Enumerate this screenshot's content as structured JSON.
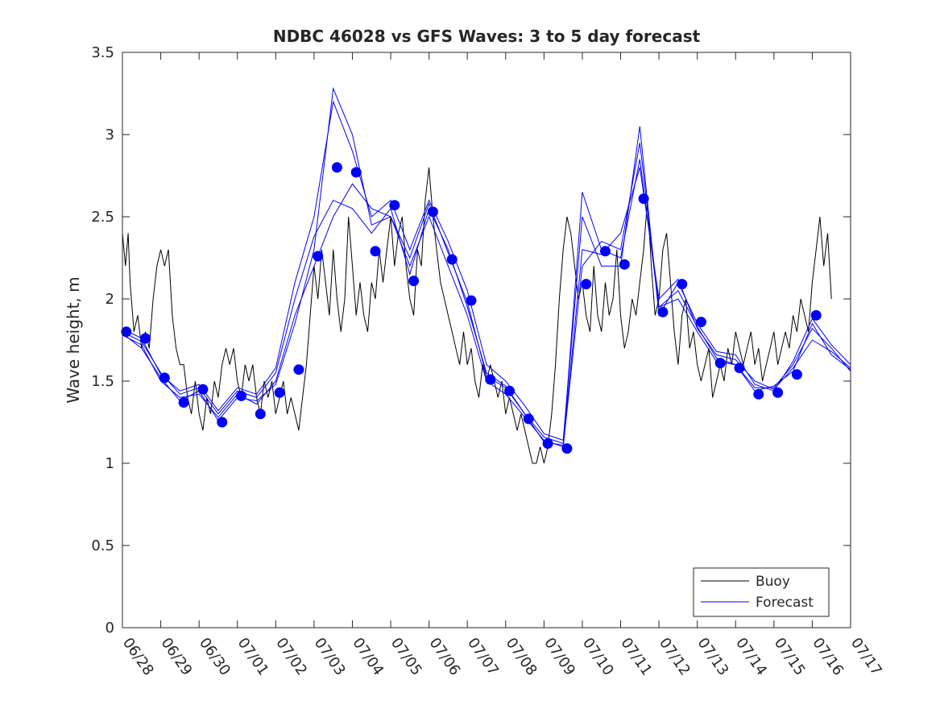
{
  "chart_data": {
    "type": "line",
    "title": "NDBC 46028 vs GFS Waves: 3 to 5 day forecast",
    "xlabel": "",
    "ylabel": "Wave height, m",
    "xlim": [
      "06/28",
      "07/17"
    ],
    "ylim": [
      0,
      3.5
    ],
    "x_ticks": [
      "06/28",
      "06/29",
      "06/30",
      "07/01",
      "07/02",
      "07/03",
      "07/04",
      "07/05",
      "07/06",
      "07/07",
      "07/08",
      "07/09",
      "07/10",
      "07/11",
      "07/12",
      "07/13",
      "07/14",
      "07/15",
      "07/16",
      "07/17"
    ],
    "y_ticks": [
      "0",
      "0.5",
      "1",
      "1.5",
      "2",
      "2.5",
      "3",
      "3.5"
    ],
    "grid": false,
    "legend": {
      "position": "bottom-right",
      "entries": [
        "Buoy",
        "Forecast"
      ]
    },
    "colors": {
      "buoy": "#000000",
      "forecast": "#0000ff",
      "axis": "#262626"
    },
    "buoy": {
      "x_days": [
        0.0,
        0.08,
        0.15,
        0.2,
        0.3,
        0.4,
        0.5,
        0.6,
        0.7,
        0.8,
        0.9,
        1.0,
        1.1,
        1.2,
        1.3,
        1.4,
        1.5,
        1.6,
        1.7,
        1.8,
        1.9,
        2.0,
        2.1,
        2.2,
        2.3,
        2.4,
        2.5,
        2.6,
        2.7,
        2.8,
        2.9,
        3.0,
        3.1,
        3.2,
        3.3,
        3.4,
        3.5,
        3.6,
        3.7,
        3.8,
        3.9,
        4.0,
        4.1,
        4.2,
        4.3,
        4.4,
        4.5,
        4.6,
        4.7,
        4.8,
        4.9,
        5.0,
        5.1,
        5.2,
        5.3,
        5.4,
        5.5,
        5.6,
        5.7,
        5.8,
        5.9,
        6.0,
        6.1,
        6.2,
        6.3,
        6.4,
        6.5,
        6.6,
        6.7,
        6.8,
        6.9,
        7.0,
        7.1,
        7.2,
        7.3,
        7.4,
        7.5,
        7.6,
        7.7,
        7.8,
        7.9,
        8.0,
        8.1,
        8.2,
        8.3,
        8.4,
        8.5,
        8.6,
        8.7,
        8.8,
        8.9,
        9.0,
        9.1,
        9.2,
        9.3,
        9.4,
        9.5,
        9.6,
        9.7,
        9.8,
        9.9,
        10.0,
        10.1,
        10.2,
        10.3,
        10.4,
        10.5,
        10.6,
        10.7,
        10.8,
        10.9,
        11.0,
        11.1,
        11.2,
        11.3,
        11.4,
        11.5,
        11.6,
        11.7,
        11.8,
        11.9,
        12.0,
        12.1,
        12.2,
        12.3,
        12.4,
        12.5,
        12.6,
        12.7,
        12.8,
        12.9,
        13.0,
        13.1,
        13.2,
        13.3,
        13.4,
        13.5,
        13.6,
        13.7,
        13.8,
        13.9,
        14.0,
        14.1,
        14.2,
        14.3,
        14.4,
        14.5,
        14.6,
        14.7,
        14.8,
        14.9,
        15.0,
        15.1,
        15.2,
        15.3,
        15.4,
        15.5,
        15.6,
        15.7,
        15.8,
        15.9,
        16.0,
        16.1,
        16.2,
        16.3,
        16.4,
        16.5,
        16.6,
        16.7,
        16.8,
        16.9,
        17.0,
        17.1,
        17.2,
        17.3,
        17.4,
        17.5,
        17.6,
        17.7,
        17.8,
        17.9,
        18.0,
        18.1,
        18.2,
        18.3,
        18.4,
        18.5
      ],
      "values": [
        2.4,
        2.2,
        2.4,
        2.1,
        1.8,
        1.9,
        1.7,
        1.8,
        1.7,
        2.0,
        2.2,
        2.3,
        2.2,
        2.3,
        1.9,
        1.7,
        1.6,
        1.6,
        1.4,
        1.3,
        1.5,
        1.3,
        1.2,
        1.4,
        1.3,
        1.5,
        1.4,
        1.6,
        1.7,
        1.6,
        1.7,
        1.5,
        1.4,
        1.6,
        1.5,
        1.6,
        1.4,
        1.3,
        1.5,
        1.4,
        1.5,
        1.3,
        1.4,
        1.5,
        1.3,
        1.4,
        1.3,
        1.2,
        1.4,
        1.6,
        1.9,
        2.2,
        2.0,
        2.3,
        2.1,
        1.9,
        2.3,
        2.0,
        1.8,
        2.0,
        2.5,
        2.2,
        1.9,
        2.1,
        1.9,
        1.8,
        2.1,
        2.0,
        2.3,
        2.1,
        2.3,
        2.5,
        2.2,
        2.4,
        2.5,
        2.2,
        2.0,
        1.9,
        2.3,
        2.2,
        2.6,
        2.8,
        2.5,
        2.3,
        2.1,
        2.0,
        1.9,
        1.8,
        1.7,
        1.6,
        1.8,
        1.6,
        1.7,
        1.5,
        1.4,
        1.6,
        1.5,
        1.6,
        1.5,
        1.4,
        1.5,
        1.3,
        1.4,
        1.3,
        1.2,
        1.3,
        1.2,
        1.1,
        1.0,
        1.0,
        1.1,
        1.0,
        1.1,
        1.3,
        1.6,
        2.0,
        2.3,
        2.5,
        2.4,
        2.2,
        2.0,
        2.1,
        1.9,
        1.8,
        2.2,
        1.9,
        1.8,
        2.1,
        1.9,
        2.0,
        2.3,
        1.9,
        1.7,
        1.8,
        2.0,
        1.9,
        2.1,
        2.3,
        2.6,
        2.2,
        1.9,
        2.0,
        2.3,
        2.4,
        2.1,
        1.8,
        1.6,
        1.9,
        2.0,
        1.7,
        1.8,
        1.6,
        1.5,
        1.6,
        1.7,
        1.4,
        1.5,
        1.6,
        1.5,
        1.7,
        1.6,
        1.8,
        1.7,
        1.6,
        1.7,
        1.8,
        1.6,
        1.7,
        1.5,
        1.6,
        1.7,
        1.8,
        1.6,
        1.7,
        1.8,
        1.7,
        1.9,
        1.8,
        2.0,
        1.9,
        1.8,
        2.1,
        2.3,
        2.5,
        2.2,
        2.4,
        2.0
      ]
    },
    "forecast_points": {
      "x_days": [
        0.1,
        0.6,
        1.1,
        1.6,
        2.1,
        2.6,
        3.1,
        3.6,
        4.1,
        4.6,
        5.1,
        5.6,
        6.1,
        6.6,
        7.1,
        7.6,
        8.1,
        8.6,
        9.1,
        9.6,
        10.1,
        10.6,
        11.1,
        11.6,
        12.1,
        12.6,
        13.1,
        13.6,
        14.1,
        14.6,
        15.1,
        15.6,
        16.1,
        16.6,
        17.1,
        17.6,
        18.1
      ],
      "values": [
        1.8,
        1.76,
        1.52,
        1.37,
        1.45,
        1.25,
        1.41,
        1.3,
        1.43,
        1.57,
        2.26,
        2.8,
        2.77,
        2.29,
        2.57,
        2.11,
        2.53,
        2.24,
        1.99,
        1.51,
        1.44,
        1.27,
        1.12,
        1.09,
        2.09,
        2.29,
        2.21,
        2.61,
        1.92,
        2.09,
        1.86,
        1.61,
        1.58,
        1.42,
        1.43,
        1.54,
        1.9
      ]
    },
    "forecast_runs": [
      {
        "x_days": [
          0.0,
          0.5,
          1.0,
          1.5,
          2.0,
          2.5,
          3.0,
          3.5,
          4.0,
          4.5,
          5.0,
          5.5,
          6.0,
          6.5,
          7.0,
          7.5,
          8.0,
          8.5,
          9.0,
          9.5,
          10.0,
          10.5,
          11.0,
          11.5,
          12.0,
          12.5,
          13.0,
          13.5,
          14.0,
          14.5,
          15.0,
          15.5,
          16.0,
          16.5,
          17.0,
          17.5,
          18.0,
          18.5,
          19.0
        ],
        "values": [
          1.8,
          1.74,
          1.55,
          1.42,
          1.46,
          1.3,
          1.44,
          1.4,
          1.55,
          2.0,
          2.38,
          2.6,
          2.55,
          2.4,
          2.55,
          2.15,
          2.55,
          2.3,
          1.95,
          1.55,
          1.47,
          1.3,
          1.16,
          1.12,
          2.3,
          2.27,
          2.4,
          2.8,
          2.0,
          2.12,
          1.82,
          1.66,
          1.63,
          1.5,
          1.45,
          1.58,
          1.75,
          1.68,
          1.58
        ]
      },
      {
        "x_days": [
          0.0,
          0.5,
          1.0,
          1.5,
          2.0,
          2.5,
          3.0,
          3.5,
          4.0,
          4.5,
          5.0,
          5.5,
          6.0,
          6.5,
          7.0,
          7.5,
          8.0,
          8.5,
          9.0,
          9.5,
          10.0,
          10.5,
          11.0,
          11.5,
          12.0,
          12.5,
          13.0,
          13.5,
          14.0,
          14.5,
          15.0,
          15.5,
          16.0,
          16.5,
          17.0,
          17.5,
          18.0,
          18.5,
          19.0
        ],
        "values": [
          1.78,
          1.72,
          1.5,
          1.4,
          1.42,
          1.28,
          1.42,
          1.36,
          1.5,
          1.9,
          2.2,
          2.5,
          2.7,
          2.55,
          2.5,
          2.2,
          2.5,
          2.2,
          1.9,
          1.5,
          1.42,
          1.28,
          1.14,
          1.1,
          2.2,
          2.35,
          2.3,
          2.95,
          1.95,
          2.0,
          1.8,
          1.62,
          1.6,
          1.46,
          1.46,
          1.6,
          1.82,
          1.7,
          1.56
        ]
      },
      {
        "x_days": [
          0.0,
          0.5,
          1.0,
          1.5,
          2.0,
          2.5,
          3.0,
          3.5,
          4.0,
          4.5,
          5.0,
          5.5,
          6.0,
          6.5,
          7.0,
          7.5,
          8.0,
          8.5,
          9.0,
          9.5,
          10.0,
          10.5,
          11.0,
          11.5,
          12.0,
          12.5,
          13.0,
          13.5,
          14.0,
          14.5,
          15.0,
          15.5,
          16.0,
          16.5,
          17.0,
          17.5,
          18.0,
          18.5,
          19.0
        ],
        "values": [
          1.82,
          1.76,
          1.54,
          1.44,
          1.48,
          1.32,
          1.46,
          1.42,
          1.58,
          2.1,
          2.5,
          3.2,
          2.9,
          2.5,
          2.6,
          2.3,
          2.6,
          2.35,
          2.05,
          1.6,
          1.5,
          1.35,
          1.18,
          1.14,
          2.5,
          2.2,
          2.2,
          3.05,
          1.9,
          2.1,
          1.85,
          1.68,
          1.66,
          1.48,
          1.44,
          1.62,
          1.88,
          1.72,
          1.6
        ]
      },
      {
        "x_days": [
          0.0,
          0.5,
          1.0,
          1.5,
          2.0,
          2.5,
          3.0,
          3.5,
          4.0,
          4.5,
          5.0,
          5.5,
          6.0,
          6.5,
          7.0,
          7.5,
          8.0,
          8.5,
          9.0,
          9.5,
          10.0,
          10.5,
          11.0,
          11.5,
          12.0,
          12.5,
          13.0,
          13.5,
          14.0,
          14.5,
          15.0,
          15.5,
          16.0,
          16.5,
          17.0,
          17.5,
          18.0,
          18.5,
          19.0
        ],
        "values": [
          1.79,
          1.7,
          1.52,
          1.38,
          1.44,
          1.26,
          1.4,
          1.38,
          1.48,
          1.85,
          2.3,
          3.28,
          3.0,
          2.45,
          2.5,
          2.25,
          2.58,
          2.28,
          1.98,
          1.53,
          1.46,
          1.3,
          1.13,
          1.11,
          2.65,
          2.3,
          2.25,
          2.85,
          1.95,
          2.05,
          1.83,
          1.64,
          1.6,
          1.44,
          1.47,
          1.56,
          1.85,
          1.66,
          1.57
        ]
      }
    ]
  }
}
